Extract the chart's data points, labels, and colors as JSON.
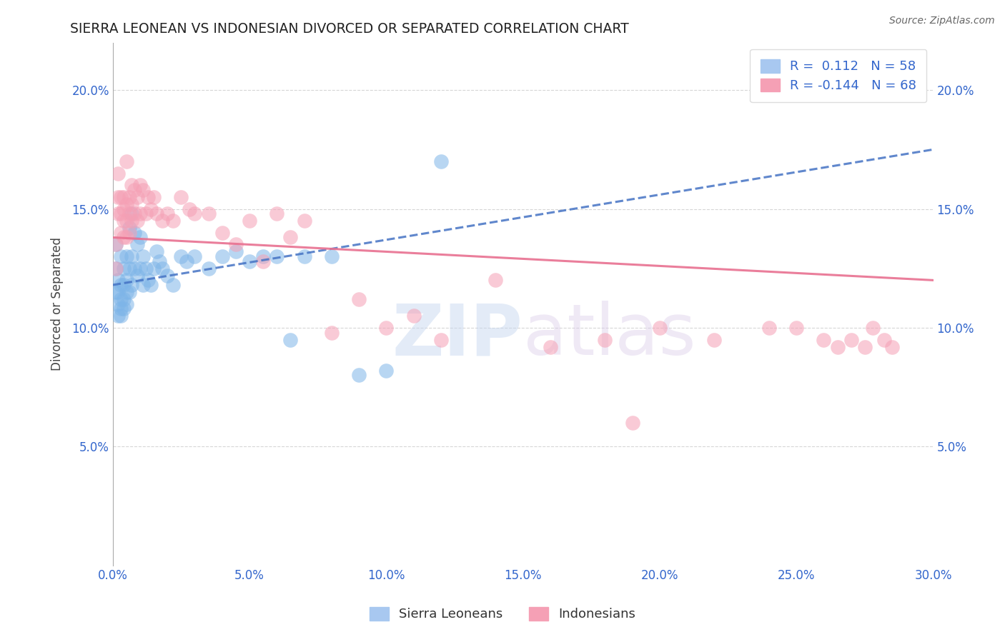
{
  "title": "SIERRA LEONEAN VS INDONESIAN DIVORCED OR SEPARATED CORRELATION CHART",
  "source_text": "Source: ZipAtlas.com",
  "ylabel": "Divorced or Separated",
  "xlim": [
    0.0,
    0.3
  ],
  "ylim": [
    0.0,
    0.22
  ],
  "xtick_labels": [
    "0.0%",
    "5.0%",
    "10.0%",
    "15.0%",
    "20.0%",
    "25.0%",
    "30.0%"
  ],
  "xtick_vals": [
    0.0,
    0.05,
    0.1,
    0.15,
    0.2,
    0.25,
    0.3
  ],
  "ytick_labels": [
    "5.0%",
    "10.0%",
    "15.0%",
    "20.0%"
  ],
  "ytick_vals": [
    0.05,
    0.1,
    0.15,
    0.2
  ],
  "sierra_color": "#7EB5E8",
  "indonesia_color": "#F5A0B5",
  "sierra_R": 0.112,
  "sierra_N": 58,
  "indonesia_R": -0.144,
  "indonesia_N": 68,
  "sierra_line_color": "#4472C4",
  "indonesia_line_color": "#E87090",
  "watermark_zip": "ZIP",
  "watermark_atlas": "atlas",
  "sierra_x": [
    0.001,
    0.001,
    0.001,
    0.002,
    0.002,
    0.002,
    0.002,
    0.003,
    0.003,
    0.003,
    0.003,
    0.003,
    0.004,
    0.004,
    0.004,
    0.004,
    0.005,
    0.005,
    0.005,
    0.005,
    0.006,
    0.006,
    0.006,
    0.007,
    0.007,
    0.007,
    0.008,
    0.008,
    0.009,
    0.009,
    0.01,
    0.01,
    0.011,
    0.011,
    0.012,
    0.013,
    0.014,
    0.015,
    0.016,
    0.017,
    0.018,
    0.02,
    0.022,
    0.025,
    0.027,
    0.03,
    0.035,
    0.04,
    0.045,
    0.05,
    0.055,
    0.06,
    0.065,
    0.07,
    0.08,
    0.09,
    0.1,
    0.12
  ],
  "sierra_y": [
    0.135,
    0.125,
    0.115,
    0.12,
    0.115,
    0.11,
    0.105,
    0.13,
    0.118,
    0.112,
    0.108,
    0.105,
    0.125,
    0.118,
    0.112,
    0.108,
    0.13,
    0.12,
    0.115,
    0.11,
    0.142,
    0.125,
    0.115,
    0.148,
    0.13,
    0.118,
    0.14,
    0.125,
    0.135,
    0.122,
    0.138,
    0.125,
    0.13,
    0.118,
    0.125,
    0.12,
    0.118,
    0.125,
    0.132,
    0.128,
    0.125,
    0.122,
    0.118,
    0.13,
    0.128,
    0.13,
    0.125,
    0.13,
    0.132,
    0.128,
    0.13,
    0.13,
    0.095,
    0.13,
    0.13,
    0.08,
    0.082,
    0.17
  ],
  "indonesia_x": [
    0.001,
    0.001,
    0.002,
    0.002,
    0.002,
    0.003,
    0.003,
    0.003,
    0.004,
    0.004,
    0.004,
    0.004,
    0.005,
    0.005,
    0.005,
    0.005,
    0.006,
    0.006,
    0.006,
    0.007,
    0.007,
    0.007,
    0.008,
    0.008,
    0.009,
    0.009,
    0.01,
    0.01,
    0.011,
    0.012,
    0.013,
    0.014,
    0.015,
    0.016,
    0.018,
    0.02,
    0.022,
    0.025,
    0.028,
    0.03,
    0.035,
    0.04,
    0.045,
    0.05,
    0.055,
    0.06,
    0.065,
    0.07,
    0.08,
    0.09,
    0.1,
    0.11,
    0.12,
    0.14,
    0.16,
    0.18,
    0.19,
    0.2,
    0.22,
    0.24,
    0.25,
    0.26,
    0.265,
    0.27,
    0.275,
    0.278,
    0.282,
    0.285
  ],
  "indonesia_y": [
    0.135,
    0.125,
    0.155,
    0.165,
    0.148,
    0.155,
    0.148,
    0.14,
    0.155,
    0.15,
    0.145,
    0.138,
    0.17,
    0.152,
    0.145,
    0.138,
    0.155,
    0.148,
    0.14,
    0.16,
    0.152,
    0.145,
    0.158,
    0.148,
    0.155,
    0.145,
    0.16,
    0.148,
    0.158,
    0.148,
    0.155,
    0.15,
    0.155,
    0.148,
    0.145,
    0.148,
    0.145,
    0.155,
    0.15,
    0.148,
    0.148,
    0.14,
    0.135,
    0.145,
    0.128,
    0.148,
    0.138,
    0.145,
    0.098,
    0.112,
    0.1,
    0.105,
    0.095,
    0.12,
    0.092,
    0.095,
    0.06,
    0.1,
    0.095,
    0.1,
    0.1,
    0.095,
    0.092,
    0.095,
    0.092,
    0.1,
    0.095,
    0.092
  ]
}
